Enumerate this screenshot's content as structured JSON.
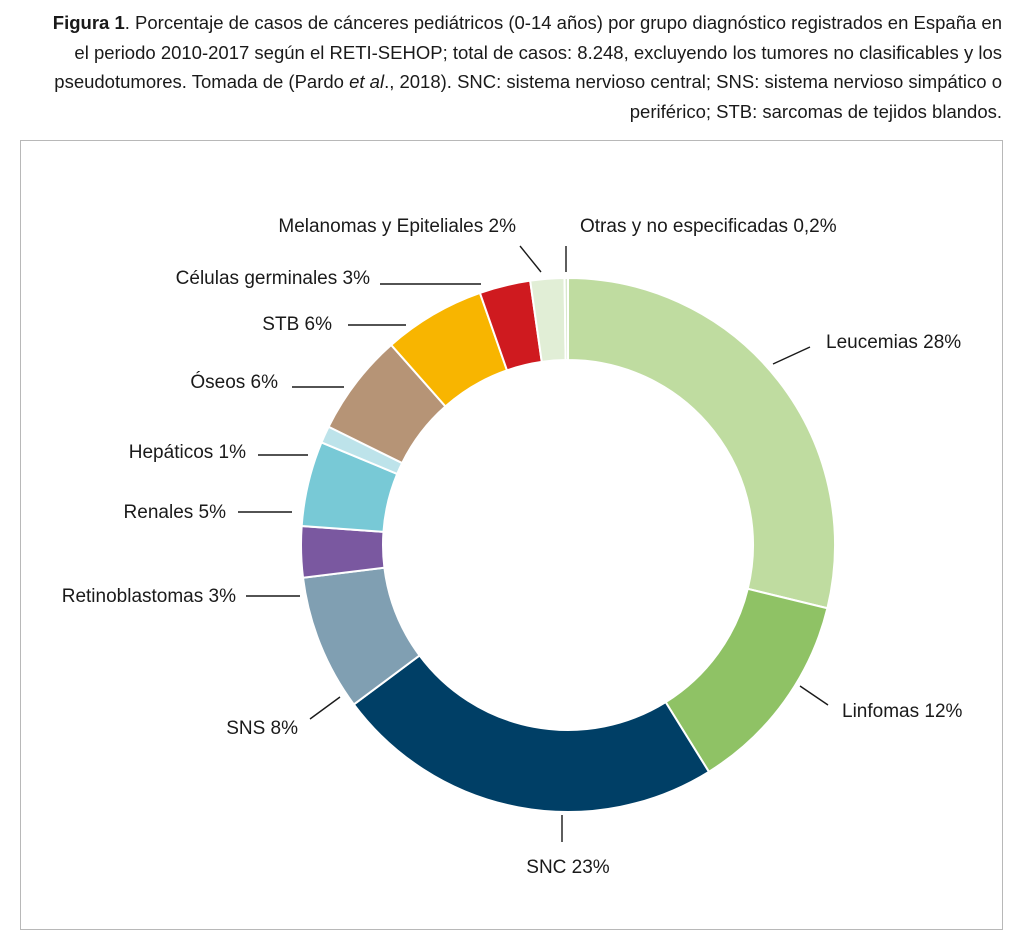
{
  "caption": {
    "label": "Figura 1",
    "text_before": ". Porcentaje de casos de cánceres pediátricos (0-14 años) por grupo diagnóstico registrados en España en el periodo 2010-2017 según el RETI-SEHOP; total de casos: 8.248, excluyendo los tumores no clasificables y los pseudotumores. Tomada de (Pardo ",
    "italic": "et al",
    "text_after": "., 2018). SNC: sistema nervioso central; SNS: sistema nervioso simpático o periférico; STB: sarcomas de tejidos blandos."
  },
  "chart_data": {
    "type": "pie",
    "variant": "donut",
    "unit": "%",
    "start": "top",
    "direction": "clockwise",
    "slices": [
      {
        "label": "Leucemias 28%",
        "name": "Leucemias",
        "value": 28,
        "color": "#bfdca0"
      },
      {
        "label": "Linfomas 12%",
        "name": "Linfomas",
        "value": 12,
        "color": "#8fc265"
      },
      {
        "label": "SNC 23%",
        "name": "SNC",
        "value": 23,
        "color": "#003f66"
      },
      {
        "label": "SNS 8%",
        "name": "SNS",
        "value": 8,
        "color": "#809fb2"
      },
      {
        "label": "Retinoblastomas 3%",
        "name": "Retinoblastomas",
        "value": 3,
        "color": "#7a58a0"
      },
      {
        "label": "Renales 5%",
        "name": "Renales",
        "value": 5,
        "color": "#78c9d6"
      },
      {
        "label": "Hepáticos 1%",
        "name": "Hepáticos",
        "value": 1,
        "color": "#bde3ea"
      },
      {
        "label": "Óseos 6%",
        "name": "Óseos",
        "value": 6,
        "color": "#b69476"
      },
      {
        "label": "STB 6%",
        "name": "STB",
        "value": 6,
        "color": "#f8b500"
      },
      {
        "label": "Células germinales 3%",
        "name": "Células germinales",
        "value": 3,
        "color": "#cf1a1f"
      },
      {
        "label": "Melanomas y Epiteliales 2%",
        "name": "Melanomas y Epiteliales",
        "value": 2,
        "color": "#e1eed6"
      },
      {
        "label": "Otras y no especificadas 0,2%",
        "name": "Otras y no especificadas",
        "value": 0.2,
        "color": "#d8e8cc"
      }
    ]
  }
}
